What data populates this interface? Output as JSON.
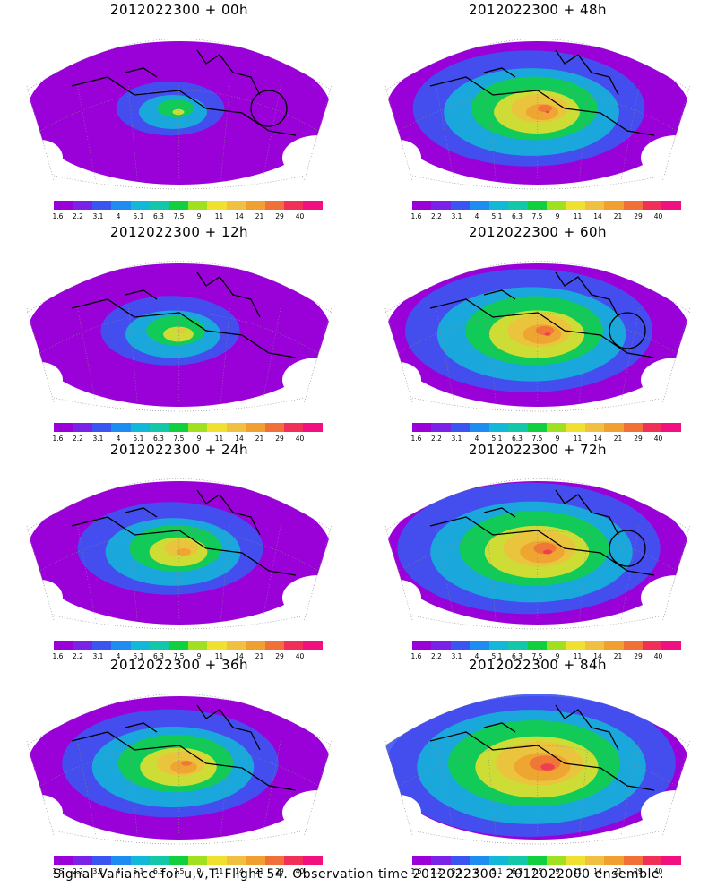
{
  "caption": "Signal Variance for u,v,T. Flight 54. Observation time 2012022300. 2012022000 ensemble.",
  "colorbar": {
    "colors": [
      "#9a00d8",
      "#7b22e8",
      "#3b55f0",
      "#1e8cf0",
      "#13b8d8",
      "#12c8a8",
      "#10d040",
      "#a0e020",
      "#f0e030",
      "#f0c040",
      "#f0a030",
      "#f07038",
      "#f03058",
      "#f01080"
    ],
    "labels": [
      "1.6",
      "2.2",
      "3.1",
      "4",
      "5.1",
      "6.3",
      "7.5",
      "9",
      "11",
      "14",
      "21",
      "29",
      "40"
    ]
  },
  "panels": [
    {
      "id": "p00",
      "title": "2012022300 + 00h",
      "intensity": 0.35,
      "circle": true
    },
    {
      "id": "p48",
      "title": "2012022300 + 48h",
      "intensity": 0.75,
      "circle": false
    },
    {
      "id": "p12",
      "title": "2012022300 + 12h",
      "intensity": 0.45,
      "circle": false
    },
    {
      "id": "p60",
      "title": "2012022300 + 60h",
      "intensity": 0.8,
      "circle": true
    },
    {
      "id": "p24",
      "title": "2012022300 + 24h",
      "intensity": 0.6,
      "circle": false
    },
    {
      "id": "p72",
      "title": "2012022300 + 72h",
      "intensity": 0.85,
      "circle": true
    },
    {
      "id": "p36",
      "title": "2012022300 + 36h",
      "intensity": 0.7,
      "circle": false
    },
    {
      "id": "p84",
      "title": "2012022300 + 84h",
      "intensity": 0.95,
      "circle": false
    }
  ]
}
